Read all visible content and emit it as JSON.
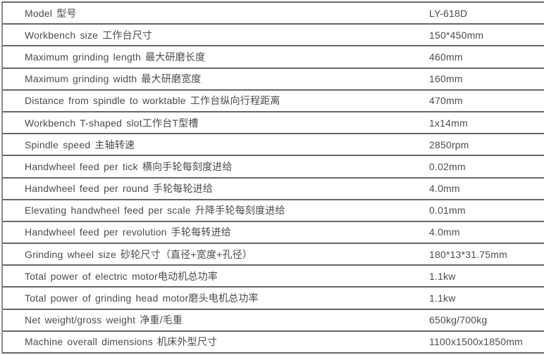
{
  "table": {
    "title": "machine-specification-table",
    "model_code": "LY-618D",
    "line_color": "#666666",
    "text_color": "#4b4b4b"
  },
  "rows": [
    {
      "label": "Model 型号",
      "value": "LY-618D"
    },
    {
      "label": "Workbench size 工作台尺寸",
      "value": "150*450mm"
    },
    {
      "label": "Maximum grinding length 最大研磨长度",
      "value": "460mm"
    },
    {
      "label": "Maximum grinding width 最大研磨宽度",
      "value": "160mm"
    },
    {
      "label": "Distance from spindle to worktable 工作台纵向行程距离",
      "value": "470mm"
    },
    {
      "label": "Workbench T-shaped slot工作台T型槽",
      "value": "1x14mm"
    },
    {
      "label": "Spindle speed 主轴转速",
      "value": "2850rpm"
    },
    {
      "label": "Handwheel feed per tick 横向手轮每刻度进给",
      "value": "0.02mm"
    },
    {
      "label": "Handwheel feed per round 手轮每轮进给",
      "value": "4.0mm"
    },
    {
      "label": "Elevating handwheel feed per scale 升降手轮每刻度进给",
      "value": "0.01mm"
    },
    {
      "label": "Handwheel feed per revolution 手轮每转进给",
      "value": "4.0mm"
    },
    {
      "label": "Grinding wheel size 砂轮尺寸（直径+宽度+孔径）",
      "value": "180*13*31.75mm"
    },
    {
      "label": "Total power of electric motor电动机总功率",
      "value": "1.1kw"
    },
    {
      "label": "Total power of grinding head motor磨头电机总功率",
      "value": "1.1kw"
    },
    {
      "label": "Net weight/gross weight 净重/毛重",
      "value": "650kg/700kg"
    },
    {
      "label": "Machine overall dimensions 机床外型尺寸",
      "value": "1100x1500x1850mm"
    }
  ]
}
